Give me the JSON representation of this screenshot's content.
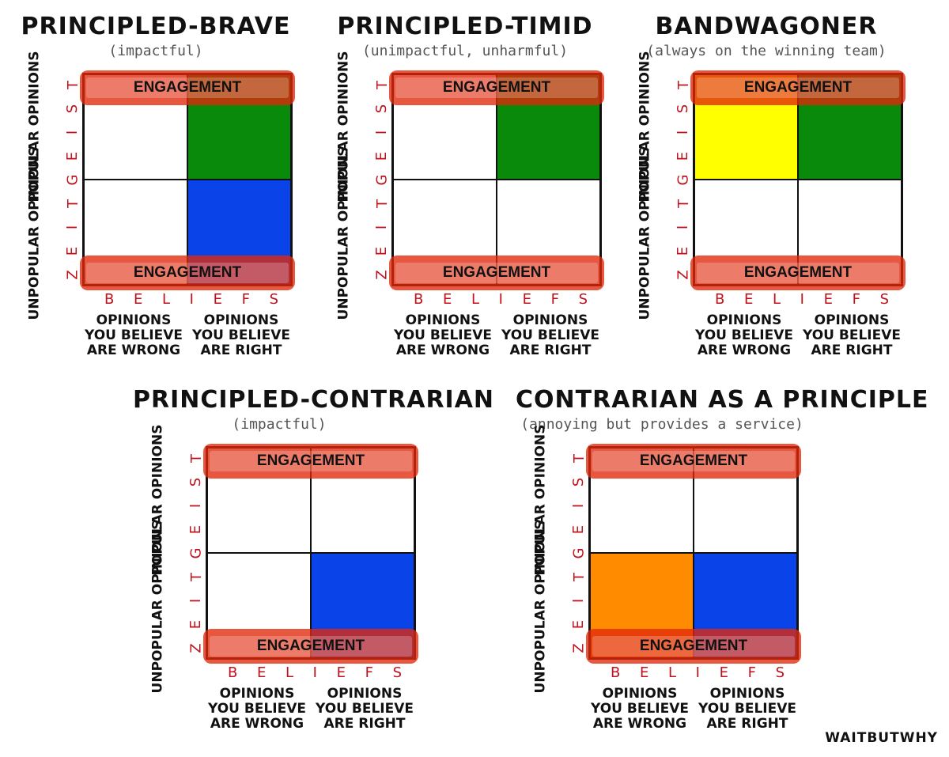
{
  "panels": [
    {
      "title": "PRINCIPLED-BRAVE",
      "subtitle": "(impactful)",
      "tl": "#ffffff",
      "tr": "#0a8a0a",
      "bl": "#ffffff",
      "br": "#0a44e8",
      "band_top": "ENGAGEMENT",
      "band_bottom": "ENGAGEMENT"
    },
    {
      "title": "PRINCIPLED-TIMID",
      "subtitle": "(unimpactful, unharmful)",
      "tl": "#ffffff",
      "tr": "#0a8a0a",
      "bl": "#ffffff",
      "br": "#ffffff",
      "band_top": "ENGAGEMENT",
      "band_bottom": "ENGAGEMENT"
    },
    {
      "title": "BANDWAGONER",
      "subtitle": "(always on the winning team)",
      "tl": "#ffff00",
      "tr": "#0a8a0a",
      "bl": "#ffffff",
      "br": "#ffffff",
      "band_top": "ENGAGEMENT",
      "band_bottom": "ENGAGEMENT"
    },
    {
      "title": "PRINCIPLED-CONTRARIAN",
      "subtitle": "(impactful)",
      "tl": "#ffffff",
      "tr": "#ffffff",
      "bl": "#ffffff",
      "br": "#0a44e8",
      "band_top": "ENGAGEMENT",
      "band_bottom": "ENGAGEMENT"
    },
    {
      "title": "CONTRARIAN AS A PRINCIPLE",
      "subtitle": "(annoying but provides a service)",
      "tl": "#ffffff",
      "tr": "#ffffff",
      "bl": "#ff8c00",
      "br": "#0a44e8",
      "band_top": "ENGAGEMENT",
      "band_bottom": "ENGAGEMENT"
    }
  ],
  "axes": {
    "zeitgeist_letters": [
      "Z",
      "E",
      "I",
      "T",
      "G",
      "E",
      "I",
      "S",
      "T"
    ],
    "beliefs_letters": [
      "B",
      "E",
      "L",
      "I",
      "E",
      "F",
      "S"
    ],
    "popular": "POPULAR OPINIONS",
    "unpopular": "UNPOPULAR OPINIONS",
    "col_wrong": "OPINIONS YOU BELIEVE ARE WRONG",
    "col_right": "OPINIONS YOU BELIEVE ARE RIGHT"
  },
  "colors": {
    "axis_letter": "#c0121c",
    "engagement_band": "#e2280a"
  },
  "logo": "WAITBUTWHY"
}
